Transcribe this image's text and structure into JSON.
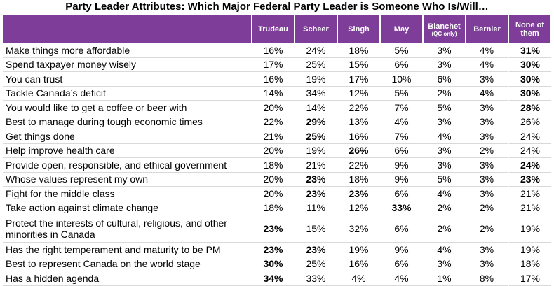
{
  "title": "Party Leader Attributes: Which Major Federal Party Leader is Someone Who Is/Will…",
  "colors": {
    "header_bg": "#7d3d98",
    "header_text": "#ffffff"
  },
  "chart_data": {
    "type": "table",
    "title": "Party Leader Attributes: Which Major Federal Party Leader is Someone Who Is/Will…",
    "columns": [
      {
        "label": "Trudeau",
        "sub": ""
      },
      {
        "label": "Scheer",
        "sub": ""
      },
      {
        "label": "Singh",
        "sub": ""
      },
      {
        "label": "May",
        "sub": ""
      },
      {
        "label": "Blanchet",
        "sub": "(QC only)"
      },
      {
        "label": "Bernier",
        "sub": ""
      },
      {
        "label": "None of them",
        "sub": ""
      }
    ],
    "rows": [
      {
        "label": "Make things more affordable",
        "values": [
          "16%",
          "24%",
          "18%",
          "5%",
          "3%",
          "4%",
          "31%"
        ],
        "bold": [
          6
        ]
      },
      {
        "label": "Spend taxpayer money wisely",
        "values": [
          "17%",
          "25%",
          "15%",
          "6%",
          "3%",
          "4%",
          "30%"
        ],
        "bold": [
          6
        ]
      },
      {
        "label": "You can trust",
        "values": [
          "16%",
          "19%",
          "17%",
          "10%",
          "6%",
          "3%",
          "30%"
        ],
        "bold": [
          6
        ]
      },
      {
        "label": "Tackle Canada’s deficit",
        "values": [
          "14%",
          "34%",
          "12%",
          "5%",
          "2%",
          "4%",
          "30%"
        ],
        "bold": [
          6
        ]
      },
      {
        "label": "You would like to get a coffee or beer with",
        "values": [
          "20%",
          "14%",
          "22%",
          "7%",
          "5%",
          "3%",
          "28%"
        ],
        "bold": [
          6
        ]
      },
      {
        "label": "Best to manage during tough economic times",
        "values": [
          "22%",
          "29%",
          "13%",
          "4%",
          "3%",
          "3%",
          "26%"
        ],
        "bold": [
          1
        ]
      },
      {
        "label": "Get things done",
        "values": [
          "21%",
          "25%",
          "16%",
          "7%",
          "4%",
          "3%",
          "24%"
        ],
        "bold": [
          1
        ]
      },
      {
        "label": "Help improve health care",
        "values": [
          "20%",
          "19%",
          "26%",
          "6%",
          "3%",
          "2%",
          "24%"
        ],
        "bold": [
          2
        ]
      },
      {
        "label": "Provide open, responsible, and ethical government",
        "values": [
          "18%",
          "21%",
          "22%",
          "9%",
          "3%",
          "3%",
          "24%"
        ],
        "bold": [
          6
        ]
      },
      {
        "label": "Whose values represent my own",
        "values": [
          "20%",
          "23%",
          "18%",
          "9%",
          "5%",
          "3%",
          "23%"
        ],
        "bold": [
          1,
          6
        ]
      },
      {
        "label": "Fight for the middle class",
        "values": [
          "20%",
          "23%",
          "23%",
          "6%",
          "4%",
          "3%",
          "21%"
        ],
        "bold": [
          1,
          2
        ]
      },
      {
        "label": "Take action against climate change",
        "values": [
          "18%",
          "11%",
          "12%",
          "33%",
          "2%",
          "2%",
          "21%"
        ],
        "bold": [
          3
        ]
      },
      {
        "label": "Protect the interests of cultural, religious, and other minorities in Canada",
        "values": [
          "23%",
          "15%",
          "32%",
          "6%",
          "2%",
          "2%",
          "19%"
        ],
        "bold": [
          0
        ]
      },
      {
        "label": "Has the right temperament and maturity to be PM",
        "values": [
          "23%",
          "23%",
          "19%",
          "9%",
          "4%",
          "3%",
          "19%"
        ],
        "bold": [
          0,
          1
        ]
      },
      {
        "label": "Best to represent Canada on the world stage",
        "values": [
          "30%",
          "25%",
          "16%",
          "6%",
          "3%",
          "3%",
          "18%"
        ],
        "bold": [
          0
        ]
      },
      {
        "label": "Has a hidden agenda",
        "values": [
          "34%",
          "33%",
          "4%",
          "4%",
          "1%",
          "8%",
          "17%"
        ],
        "bold": [
          0
        ]
      }
    ]
  }
}
